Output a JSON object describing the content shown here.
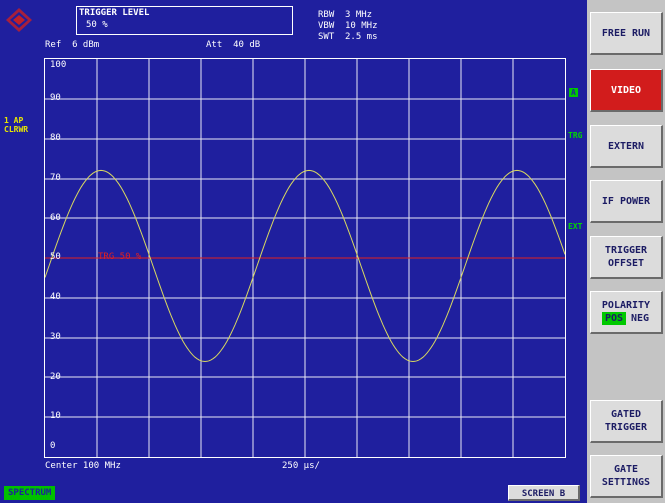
{
  "header": {
    "trigger_title": "TRIGGER LEVEL",
    "trigger_value": "50 %",
    "ref": "Ref  6 dBm",
    "att": "Att  40 dB",
    "rbw_label": "RBW",
    "rbw_value": "3 MHz",
    "vbw_label": "VBW",
    "vbw_value": "10 MHz",
    "swt_label": "SWT",
    "swt_value": "2.5 ms"
  },
  "trace_info": {
    "line1": "1 AP",
    "line2": "CLRWR"
  },
  "grid": {
    "y_labels": [
      "100",
      "90",
      "80",
      "70",
      "60",
      "50",
      "40",
      "30",
      "20",
      "10",
      "0"
    ],
    "trigger_marker": "TRG 50 %",
    "center": "Center 100 MHz",
    "span": "250 µs/"
  },
  "side_tags": {
    "a": "A",
    "trg": "TRG",
    "ext": "EXT"
  },
  "softkeys": {
    "free_run": "FREE RUN",
    "video": "VIDEO",
    "extern": "EXTERN",
    "if_power": "IF POWER",
    "trigger_offset_1": "TRIGGER",
    "trigger_offset_2": "OFFSET",
    "polarity": "POLARITY",
    "pos": "POS",
    "neg": "NEG",
    "gated_1": "GATED",
    "gated_2": "TRIGGER",
    "gate_1": "GATE",
    "gate_2": "SETTINGS"
  },
  "bottom": {
    "spectrum_tab": "SPECTRUM",
    "screen_b": "SCREEN B"
  },
  "colors": {
    "background": "#1f1f9e",
    "trace": "#d8d860",
    "trigger_line": "#e02020",
    "grid": "#ffffff",
    "active_key": "#d21c1c",
    "mode_green": "#00c800"
  }
}
